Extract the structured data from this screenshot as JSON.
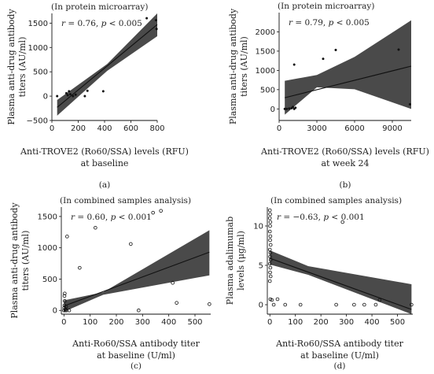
{
  "chart_data": [
    {
      "type": "scatter",
      "panel_label": "(a)",
      "note": "(In protein microarray)",
      "stat_r": "r = 0.76,",
      "stat_p": "p < 0.005",
      "xlabel_lines": [
        "Anti-TROVE2 (Ro60/SSA) levels (RFU)",
        "at baseline"
      ],
      "ylabel_lines": [
        "Plasma anti-drug antibody",
        "titers (AU/ml)"
      ],
      "xlim": [
        0,
        800
      ],
      "ylim": [
        -500,
        1700
      ],
      "xticks": [
        0,
        200,
        400,
        600,
        800
      ],
      "yticks": [
        -500,
        0,
        500,
        1000,
        1500
      ],
      "points": [
        {
          "x": 40,
          "y": 0,
          "open": false
        },
        {
          "x": 110,
          "y": 60,
          "open": false
        },
        {
          "x": 120,
          "y": 20,
          "open": false
        },
        {
          "x": 130,
          "y": 100,
          "open": false
        },
        {
          "x": 140,
          "y": 40,
          "open": false
        },
        {
          "x": 160,
          "y": 0,
          "open": false
        },
        {
          "x": 180,
          "y": 30,
          "open": false
        },
        {
          "x": 250,
          "y": 0,
          "open": false
        },
        {
          "x": 270,
          "y": 110,
          "open": false
        },
        {
          "x": 390,
          "y": 100,
          "open": false
        },
        {
          "x": 720,
          "y": 1600,
          "open": false
        },
        {
          "x": 790,
          "y": 1560,
          "open": false
        },
        {
          "x": 795,
          "y": 1380,
          "open": false
        }
      ],
      "fit": {
        "x0": 40,
        "y0": -230,
        "x1": 800,
        "y1": 1470
      },
      "band": {
        "upper": [
          [
            40,
            -80
          ],
          [
            420,
            660
          ],
          [
            800,
            1720
          ]
        ],
        "lower": [
          [
            40,
            -400
          ],
          [
            420,
            520
          ],
          [
            800,
            1230
          ]
        ]
      }
    },
    {
      "type": "scatter",
      "panel_label": "(b)",
      "note": "(In protein microarray)",
      "stat_r": "r = 0.79,",
      "stat_p": "p < 0.005",
      "xlabel_lines": [
        "Anti-TROVE2 (Ro60/SSA) levels (RFU)",
        "at week 24"
      ],
      "ylabel_lines": [
        "Plasma anti-drug antibody",
        "titers (AU/ml)"
      ],
      "xlim": [
        0,
        10500
      ],
      "ylim": [
        -300,
        2500
      ],
      "xticks": [
        0,
        3000,
        6000,
        9000
      ],
      "yticks": [
        0,
        500,
        1000,
        1500,
        2000
      ],
      "points": [
        {
          "x": 450,
          "y": 0,
          "open": false
        },
        {
          "x": 600,
          "y": 0,
          "open": false
        },
        {
          "x": 800,
          "y": 10,
          "open": false
        },
        {
          "x": 1000,
          "y": 20,
          "open": false
        },
        {
          "x": 1100,
          "y": 50,
          "open": false
        },
        {
          "x": 1200,
          "y": 0,
          "open": false
        },
        {
          "x": 1300,
          "y": 30,
          "open": false
        },
        {
          "x": 1200,
          "y": 1150,
          "open": false
        },
        {
          "x": 3500,
          "y": 1300,
          "open": false
        },
        {
          "x": 4500,
          "y": 1530,
          "open": false
        },
        {
          "x": 9500,
          "y": 1540,
          "open": false
        },
        {
          "x": 10400,
          "y": 120,
          "open": false
        }
      ],
      "fit": {
        "x0": 450,
        "y0": 290,
        "x1": 10500,
        "y1": 1110
      },
      "band": {
        "upper": [
          [
            450,
            730
          ],
          [
            3000,
            880
          ],
          [
            6000,
            1350
          ],
          [
            10500,
            2300
          ]
        ],
        "lower": [
          [
            450,
            -150
          ],
          [
            3000,
            560
          ],
          [
            6000,
            510
          ],
          [
            10500,
            0
          ]
        ]
      }
    },
    {
      "type": "scatter",
      "panel_label": "(c)",
      "note": "(In combined samples analysis)",
      "stat_r": "r = 0.60,",
      "stat_p": "p < 0.001",
      "xlabel_lines": [
        "Anti-Ro60/SSA antibody titer",
        "at baseline (U/ml)"
      ],
      "ylabel_lines": [
        "Plasma anti-drug antibody",
        "titers (AU/ml)"
      ],
      "xlim": [
        -10,
        560
      ],
      "ylim": [
        -60,
        1650
      ],
      "xticks": [
        0,
        100,
        200,
        300,
        400,
        500
      ],
      "yticks": [
        0,
        500,
        1000,
        1500
      ],
      "points": [
        {
          "x": 0,
          "y": 0,
          "open": true
        },
        {
          "x": 1,
          "y": 40,
          "open": true
        },
        {
          "x": 2,
          "y": 80,
          "open": true
        },
        {
          "x": 3,
          "y": 150,
          "open": true
        },
        {
          "x": 2,
          "y": 230,
          "open": true
        },
        {
          "x": 3,
          "y": 270,
          "open": true
        },
        {
          "x": 5,
          "y": 0,
          "open": true
        },
        {
          "x": 6,
          "y": 20,
          "open": true
        },
        {
          "x": 8,
          "y": 60,
          "open": true
        },
        {
          "x": 10,
          "y": 0,
          "open": true
        },
        {
          "x": 12,
          "y": 1180,
          "open": true
        },
        {
          "x": 20,
          "y": 0,
          "open": true
        },
        {
          "x": 60,
          "y": 680,
          "open": true
        },
        {
          "x": 120,
          "y": 1320,
          "open": true
        },
        {
          "x": 255,
          "y": 1060,
          "open": true
        },
        {
          "x": 285,
          "y": 0,
          "open": true
        },
        {
          "x": 340,
          "y": 1560,
          "open": true
        },
        {
          "x": 370,
          "y": 1590,
          "open": true
        },
        {
          "x": 415,
          "y": 440,
          "open": true
        },
        {
          "x": 430,
          "y": 120,
          "open": true
        },
        {
          "x": 555,
          "y": 100,
          "open": true
        }
      ],
      "fit": {
        "x0": 0,
        "y0": 70,
        "x1": 555,
        "y1": 930
      },
      "band": {
        "upper": [
          [
            0,
            160
          ],
          [
            150,
            290
          ],
          [
            555,
            1280
          ]
        ],
        "lower": [
          [
            0,
            -20
          ],
          [
            150,
            250
          ],
          [
            555,
            560
          ]
        ]
      }
    },
    {
      "type": "scatter",
      "panel_label": "(d)",
      "note": "(In combined samples analysis)",
      "stat_r": "r = −0.63,",
      "stat_p": "p < 0.001",
      "xlabel_lines": [
        "Anti-Ro60/SSA antibody titer",
        "at baseline (U/ml)"
      ],
      "ylabel_lines": [
        "Plasma adalimumab",
        "levels (μg/ml)"
      ],
      "xlim": [
        -10,
        560
      ],
      "ylim": [
        -1.2,
        12.4
      ],
      "xticks": [
        0,
        100,
        200,
        300,
        400,
        500
      ],
      "yticks": [
        0,
        5,
        10
      ],
      "points": [
        {
          "x": 0,
          "y": 12,
          "open": true
        },
        {
          "x": 1,
          "y": 11.5,
          "open": true
        },
        {
          "x": 0,
          "y": 11,
          "open": true
        },
        {
          "x": 2,
          "y": 10.5,
          "open": true
        },
        {
          "x": 1,
          "y": 10,
          "open": true
        },
        {
          "x": 0,
          "y": 9.3,
          "open": true
        },
        {
          "x": 2,
          "y": 8.7,
          "open": true
        },
        {
          "x": 1,
          "y": 8.2,
          "open": true
        },
        {
          "x": 3,
          "y": 7.6,
          "open": true
        },
        {
          "x": 0,
          "y": 7,
          "open": true
        },
        {
          "x": 2,
          "y": 6.6,
          "open": true
        },
        {
          "x": 1,
          "y": 6.1,
          "open": true
        },
        {
          "x": 3,
          "y": 5.7,
          "open": true
        },
        {
          "x": 0,
          "y": 5.2,
          "open": true
        },
        {
          "x": 2,
          "y": 4.7,
          "open": true
        },
        {
          "x": 1,
          "y": 4.1,
          "open": true
        },
        {
          "x": 3,
          "y": 3.6,
          "open": true
        },
        {
          "x": 0,
          "y": 3,
          "open": true
        },
        {
          "x": 2,
          "y": 0.7,
          "open": true
        },
        {
          "x": 8,
          "y": 0.6,
          "open": true
        },
        {
          "x": 15,
          "y": 0,
          "open": true
        },
        {
          "x": 30,
          "y": 0.7,
          "open": true
        },
        {
          "x": 60,
          "y": 0,
          "open": true
        },
        {
          "x": 120,
          "y": 0,
          "open": true
        },
        {
          "x": 260,
          "y": 0,
          "open": true
        },
        {
          "x": 285,
          "y": 10.5,
          "open": true
        },
        {
          "x": 330,
          "y": 0,
          "open": true
        },
        {
          "x": 370,
          "y": 0,
          "open": true
        },
        {
          "x": 415,
          "y": 0,
          "open": true
        },
        {
          "x": 430,
          "y": 0.6,
          "open": true
        },
        {
          "x": 555,
          "y": 0,
          "open": true
        }
      ],
      "fit": {
        "x0": 0,
        "y0": 5.9,
        "x1": 555,
        "y1": -0.6
      },
      "band": {
        "upper": [
          [
            0,
            6.9
          ],
          [
            150,
            4.9
          ],
          [
            555,
            2.6
          ]
        ],
        "lower": [
          [
            0,
            5.1
          ],
          [
            150,
            3.8
          ],
          [
            555,
            -1.2
          ]
        ]
      }
    }
  ]
}
